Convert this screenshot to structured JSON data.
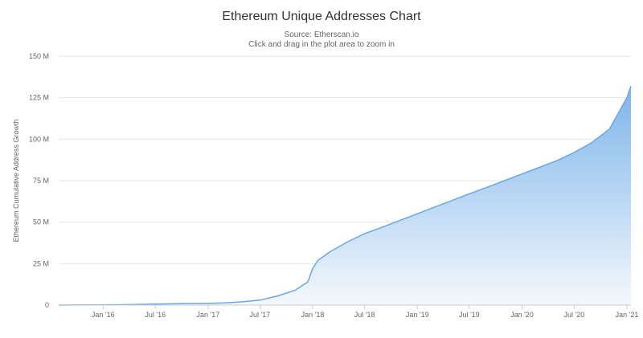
{
  "chart": {
    "title": "Ethereum Unique Addresses Chart",
    "subtitle_lines": [
      "Source: Etherscan.io",
      "Click and drag in the plot area to zoom in"
    ]
  },
  "colors": {
    "area_top": "#7eb5ea",
    "area_bottom": "#f4f8fd",
    "line": "#6aa6e6",
    "grid": "#e6e6e6",
    "axis": "#cccccc"
  },
  "chart_data": {
    "type": "area",
    "title": "Ethereum Unique Addresses Chart",
    "subtitle": "Source: Etherscan.io",
    "ylabel": "Ethereum Cumulative Address Growth",
    "xlabel": "",
    "ylim": [
      0,
      150
    ],
    "y_unit": "M",
    "yticks": [
      {
        "value": 0,
        "label": "0"
      },
      {
        "value": 25,
        "label": "25 M"
      },
      {
        "value": 50,
        "label": "50 M"
      },
      {
        "value": 75,
        "label": "75 M"
      },
      {
        "value": 100,
        "label": "100 M"
      },
      {
        "value": 125,
        "label": "125 M"
      },
      {
        "value": 150,
        "label": "150 M"
      }
    ],
    "xlim": [
      "2015-07-30",
      "2021-01-15"
    ],
    "xticks": [
      {
        "date": "2016-01-01",
        "label": "Jan '16"
      },
      {
        "date": "2016-07-01",
        "label": "Jul '16"
      },
      {
        "date": "2017-01-01",
        "label": "Jan '17"
      },
      {
        "date": "2017-07-01",
        "label": "Jul '17"
      },
      {
        "date": "2018-01-01",
        "label": "Jan '18"
      },
      {
        "date": "2018-07-01",
        "label": "Jul '18"
      },
      {
        "date": "2019-01-01",
        "label": "Jan '19"
      },
      {
        "date": "2019-07-01",
        "label": "Jul '19"
      },
      {
        "date": "2020-01-01",
        "label": "Jan '20"
      },
      {
        "date": "2020-07-01",
        "label": "Jul '20"
      },
      {
        "date": "2021-01-01",
        "label": "Jan '21"
      }
    ],
    "grid": true,
    "legend": "none",
    "series": [
      {
        "x": [
          "2015-07-30",
          "2015-10-01",
          "2016-01-01",
          "2016-04-01",
          "2016-07-01",
          "2016-10-01",
          "2017-01-01",
          "2017-03-01",
          "2017-05-01",
          "2017-07-01",
          "2017-09-01",
          "2017-11-01",
          "2017-12-15",
          "2018-01-01",
          "2018-01-20",
          "2018-03-01",
          "2018-05-01",
          "2018-07-01",
          "2018-09-01",
          "2018-11-01",
          "2019-01-01",
          "2019-03-01",
          "2019-05-01",
          "2019-07-01",
          "2019-09-01",
          "2019-11-01",
          "2020-01-01",
          "2020-03-01",
          "2020-05-01",
          "2020-07-01",
          "2020-09-01",
          "2020-11-01",
          "2021-01-01",
          "2021-01-15"
        ],
        "y": [
          0.01,
          0.05,
          0.1,
          0.3,
          0.6,
          0.8,
          1,
          1.3,
          2,
          3,
          5.5,
          9,
          14,
          22,
          27,
          32,
          38,
          43,
          47,
          51,
          55,
          59,
          63,
          67,
          71,
          75,
          79,
          83,
          87,
          92,
          98,
          106,
          125,
          132
        ]
      }
    ]
  }
}
